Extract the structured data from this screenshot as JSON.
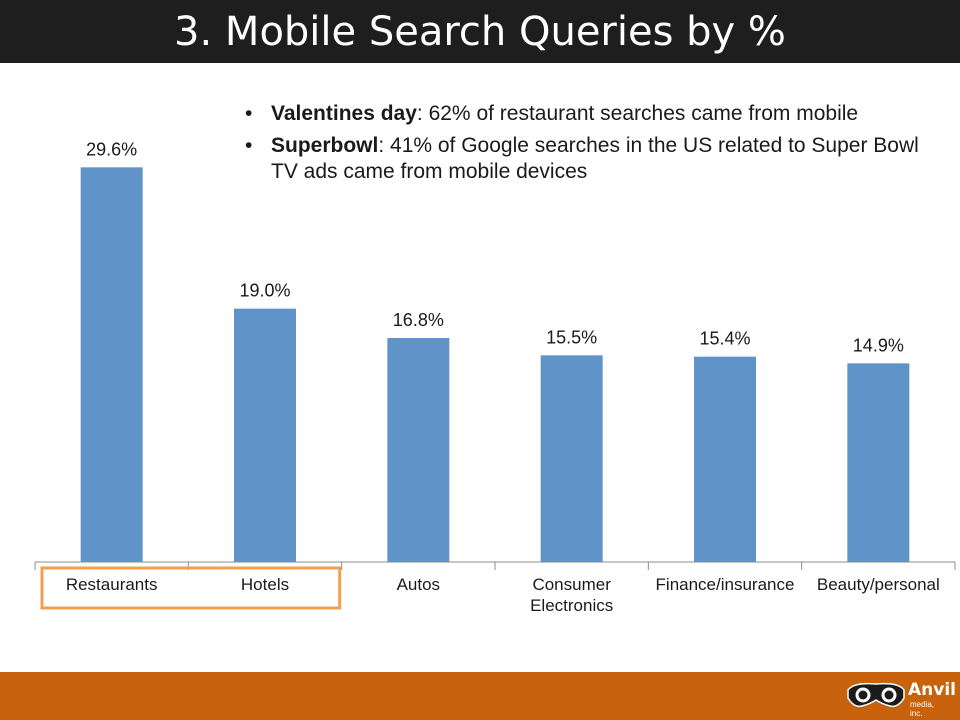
{
  "slide": {
    "title": "3. Mobile Search Queries by %",
    "bullets": [
      {
        "label": "Valentines day",
        "text": ": 62% of restaurant searches came from mobile"
      },
      {
        "label": "Superbowl",
        "text": ": 41% of Google searches in the US related to Super Bowl TV ads came from mobile devices"
      }
    ],
    "bullet_glyph": "•",
    "logo": {
      "word": "Anvil",
      "sub": "media, inc.",
      "icon": "anvil-goggles-icon"
    },
    "colors": {
      "title_bar": "#1e1e1e",
      "footer_bar": "#c8620d",
      "bar_fill": "#6094c9",
      "highlight_box": "#f0a050"
    }
  },
  "chart_data": {
    "type": "bar",
    "categories": [
      "Restaurants",
      "Hotels",
      "Autos",
      "Consumer Electronics",
      "Finance/insurance",
      "Beauty/personal"
    ],
    "category_lines": [
      [
        "Restaurants"
      ],
      [
        "Hotels"
      ],
      [
        "Autos"
      ],
      [
        "Consumer",
        "Electronics"
      ],
      [
        "Finance/insurance"
      ],
      [
        "Beauty/personal"
      ]
    ],
    "values": [
      29.6,
      19.0,
      16.8,
      15.5,
      15.4,
      14.9
    ],
    "data_labels": [
      "29.6%",
      "19.0%",
      "16.8%",
      "15.5%",
      "15.4%",
      "14.9%"
    ],
    "ylim": [
      0,
      30
    ],
    "grid": false,
    "highlighted_categories": [
      "Restaurants",
      "Hotels"
    ],
    "title": "",
    "xlabel": "",
    "ylabel": ""
  }
}
